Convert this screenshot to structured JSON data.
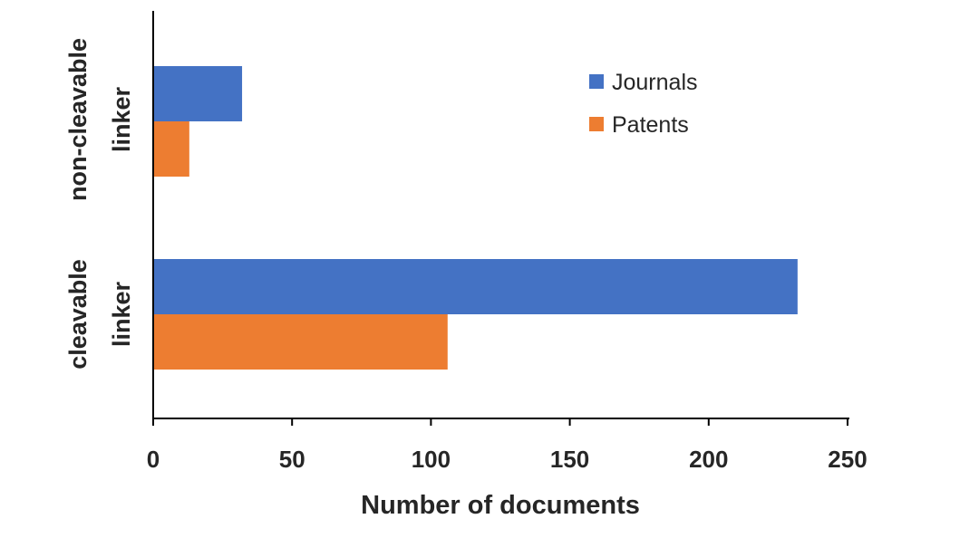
{
  "chart_data": {
    "type": "bar",
    "orientation": "horizontal",
    "categories": [
      [
        "non-cleavable",
        "linker"
      ],
      [
        "cleavable",
        "linker"
      ]
    ],
    "series": [
      {
        "name": "Journals",
        "color": "#4472C4",
        "values": [
          32,
          232
        ]
      },
      {
        "name": "Patents",
        "color": "#ED7D31",
        "values": [
          13,
          106
        ]
      }
    ],
    "xlabel": "Number of documents",
    "ylabel": "",
    "title": "",
    "xlim": [
      0,
      250
    ],
    "xticks": [
      "0",
      "50",
      "100",
      "150",
      "200",
      "250"
    ],
    "grid": false,
    "legend_position": "top-right"
  }
}
